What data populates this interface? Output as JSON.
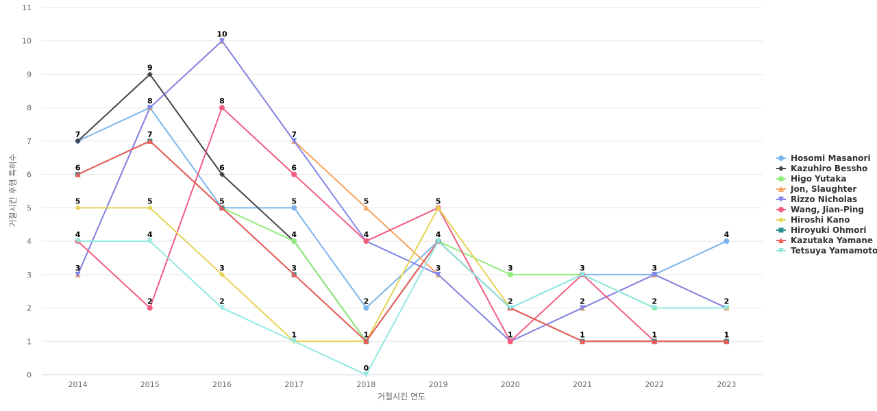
{
  "chart_data": {
    "type": "line",
    "title": "",
    "xlabel": "거절시킨 연도",
    "ylabel": "거절시킨 후행 특허수",
    "x": [
      "2014",
      "2015",
      "2016",
      "2017",
      "2018",
      "2019",
      "2020",
      "2021",
      "2022",
      "2023"
    ],
    "ylim": [
      0,
      11
    ],
    "yticks": [
      0,
      1,
      2,
      3,
      4,
      5,
      6,
      7,
      8,
      9,
      10,
      11
    ],
    "grid": true,
    "legend_position": "right",
    "series": [
      {
        "name": "Hosomi Masanori",
        "color": "#7cb5ec",
        "marker": "circle",
        "values": [
          7,
          8,
          5,
          5,
          2,
          4,
          2,
          3,
          3,
          4
        ]
      },
      {
        "name": "Kazuhiro Bessho",
        "color": "#434348",
        "marker": "diamond",
        "values": [
          7,
          9,
          6,
          4,
          1,
          4,
          2,
          1,
          1,
          1
        ]
      },
      {
        "name": "Higo Yutaka",
        "color": "#90ed7d",
        "marker": "square",
        "values": [
          6,
          7,
          5,
          4,
          1,
          4,
          3,
          3,
          2,
          2
        ]
      },
      {
        "name": "Jon, Slaughter",
        "color": "#f7a35c",
        "marker": "triangle",
        "values": [
          3,
          8,
          10,
          7,
          5,
          3,
          1,
          2,
          3,
          2
        ]
      },
      {
        "name": "Rizzo Nicholas",
        "color": "#8085e9",
        "marker": "triangle-down",
        "values": [
          3,
          8,
          10,
          7,
          4,
          3,
          1,
          2,
          3,
          2
        ]
      },
      {
        "name": "Wang, Jian-Ping",
        "color": "#f15c80",
        "marker": "circle",
        "values": [
          4,
          2,
          8,
          6,
          4,
          5,
          1,
          3,
          1,
          1
        ]
      },
      {
        "name": "Hiroshi Kano",
        "color": "#e4d354",
        "marker": "diamond",
        "values": [
          5,
          5,
          3,
          1,
          1,
          5,
          2,
          1,
          1,
          1
        ]
      },
      {
        "name": "Hiroyuki Ohmori",
        "color": "#2b908f",
        "marker": "square",
        "values": [
          6,
          7,
          5,
          3,
          1,
          4,
          2,
          1,
          1,
          1
        ]
      },
      {
        "name": "Kazutaka Yamane",
        "color": "#f45b5b",
        "marker": "triangle",
        "values": [
          6,
          7,
          5,
          3,
          1,
          4,
          2,
          1,
          1,
          1
        ]
      },
      {
        "name": "Tetsuya Yamamoto",
        "color": "#91e8e1",
        "marker": "triangle-down",
        "values": [
          4,
          4,
          2,
          1,
          0,
          4,
          2,
          3,
          2,
          2
        ]
      }
    ],
    "data_labels": [
      {
        "x": "2014",
        "y": 7,
        "text": "7"
      },
      {
        "x": "2014",
        "y": 6,
        "text": "6"
      },
      {
        "x": "2014",
        "y": 5,
        "text": "5"
      },
      {
        "x": "2014",
        "y": 4,
        "text": "4"
      },
      {
        "x": "2014",
        "y": 3,
        "text": "3"
      },
      {
        "x": "2015",
        "y": 9,
        "text": "9"
      },
      {
        "x": "2015",
        "y": 8,
        "text": "8"
      },
      {
        "x": "2015",
        "y": 7,
        "text": "7"
      },
      {
        "x": "2015",
        "y": 5,
        "text": "5"
      },
      {
        "x": "2015",
        "y": 4,
        "text": "4"
      },
      {
        "x": "2015",
        "y": 2,
        "text": "2"
      },
      {
        "x": "2016",
        "y": 10,
        "text": "10"
      },
      {
        "x": "2016",
        "y": 8,
        "text": "8"
      },
      {
        "x": "2016",
        "y": 6,
        "text": "6"
      },
      {
        "x": "2016",
        "y": 5,
        "text": "5"
      },
      {
        "x": "2016",
        "y": 3,
        "text": "3"
      },
      {
        "x": "2016",
        "y": 2,
        "text": "2"
      },
      {
        "x": "2017",
        "y": 7,
        "text": "7"
      },
      {
        "x": "2017",
        "y": 6,
        "text": "6"
      },
      {
        "x": "2017",
        "y": 5,
        "text": "5"
      },
      {
        "x": "2017",
        "y": 4,
        "text": "4"
      },
      {
        "x": "2017",
        "y": 3,
        "text": "3"
      },
      {
        "x": "2017",
        "y": 1,
        "text": "1"
      },
      {
        "x": "2018",
        "y": 5,
        "text": "5"
      },
      {
        "x": "2018",
        "y": 4,
        "text": "4"
      },
      {
        "x": "2018",
        "y": 2,
        "text": "2"
      },
      {
        "x": "2018",
        "y": 1,
        "text": "1"
      },
      {
        "x": "2018",
        "y": 0,
        "text": "0"
      },
      {
        "x": "2019",
        "y": 5,
        "text": "5"
      },
      {
        "x": "2019",
        "y": 4,
        "text": "4"
      },
      {
        "x": "2019",
        "y": 3,
        "text": "3"
      },
      {
        "x": "2020",
        "y": 3,
        "text": "3"
      },
      {
        "x": "2020",
        "y": 2,
        "text": "2"
      },
      {
        "x": "2020",
        "y": 1,
        "text": "1"
      },
      {
        "x": "2021",
        "y": 3,
        "text": "3"
      },
      {
        "x": "2021",
        "y": 2,
        "text": "2"
      },
      {
        "x": "2021",
        "y": 1,
        "text": "1"
      },
      {
        "x": "2022",
        "y": 3,
        "text": "3"
      },
      {
        "x": "2022",
        "y": 2,
        "text": "2"
      },
      {
        "x": "2022",
        "y": 1,
        "text": "1"
      },
      {
        "x": "2023",
        "y": 4,
        "text": "4"
      },
      {
        "x": "2023",
        "y": 2,
        "text": "2"
      },
      {
        "x": "2023",
        "y": 1,
        "text": "1"
      }
    ]
  }
}
